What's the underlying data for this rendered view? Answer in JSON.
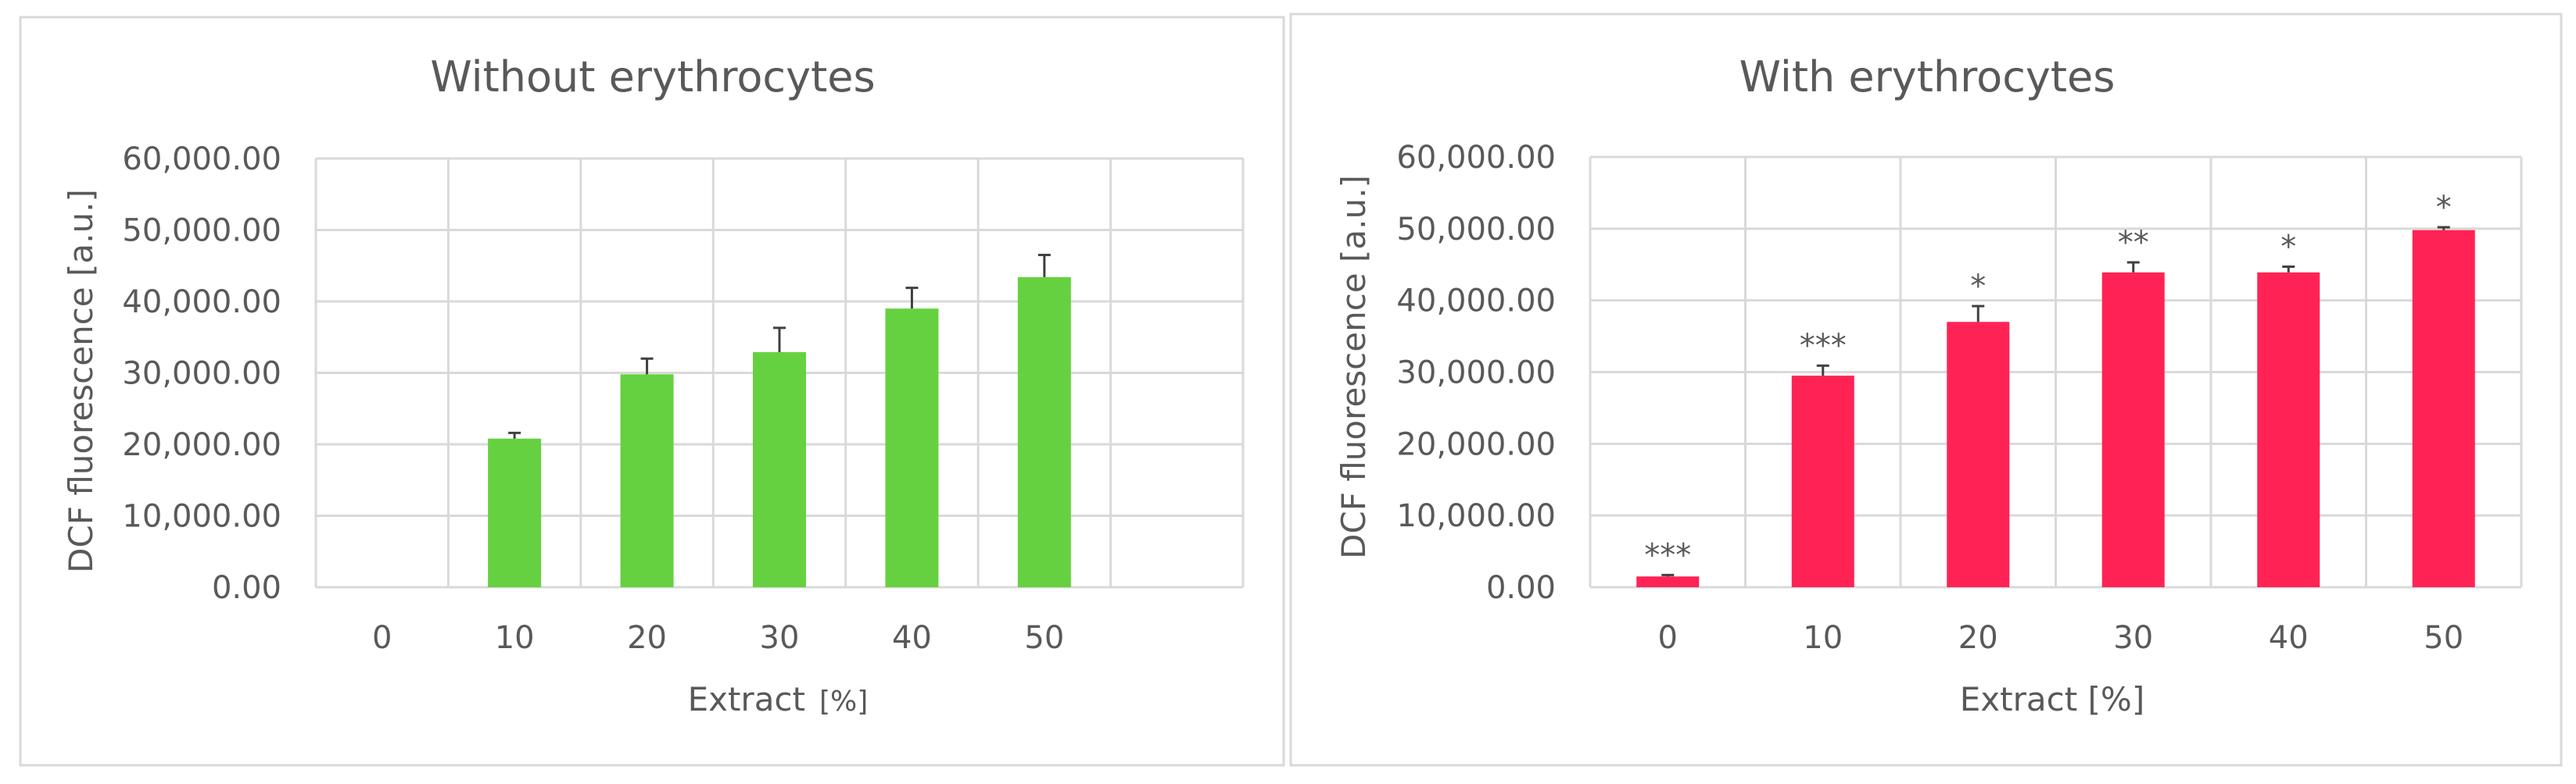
{
  "chart_data": [
    {
      "type": "bar",
      "title": "Without erythrocytes",
      "xlabel": "Extract",
      "xunit": "[%]",
      "ylabel": "DCF fluorescence [a.u.]",
      "ylim": [
        0,
        60000
      ],
      "yticks": [
        "0.00",
        "10,000.00",
        "20,000.00",
        "30,000.00",
        "40,000.00",
        "50,000.00",
        "60,000.00"
      ],
      "categories": [
        "0",
        "10",
        "20",
        "30",
        "40",
        "50"
      ],
      "values": [
        0,
        20800,
        29800,
        32900,
        39000,
        43400
      ],
      "errors": [
        0,
        800,
        2200,
        3400,
        2900,
        3100
      ],
      "annotations": [
        "",
        "",
        "",
        "",
        "",
        ""
      ],
      "color": "#66d140",
      "grid": true
    },
    {
      "type": "bar",
      "title": "With erythrocytes",
      "xlabel": "Extract [%]",
      "xunit": "",
      "ylabel": "DCF fluorescence [a.u.]",
      "ylim": [
        0,
        60000
      ],
      "yticks": [
        "0.00",
        "10,000.00",
        "20,000.00",
        "30,000.00",
        "40,000.00",
        "50,000.00",
        "60,000.00"
      ],
      "categories": [
        "0",
        "10",
        "20",
        "30",
        "40",
        "50"
      ],
      "values": [
        1500,
        29500,
        37000,
        43900,
        43900,
        49800
      ],
      "errors": [
        200,
        1400,
        2200,
        1400,
        800,
        400
      ],
      "annotations": [
        "***",
        "***",
        "*",
        "**",
        "*",
        "*"
      ],
      "color": "#ff2355",
      "grid": true
    }
  ]
}
